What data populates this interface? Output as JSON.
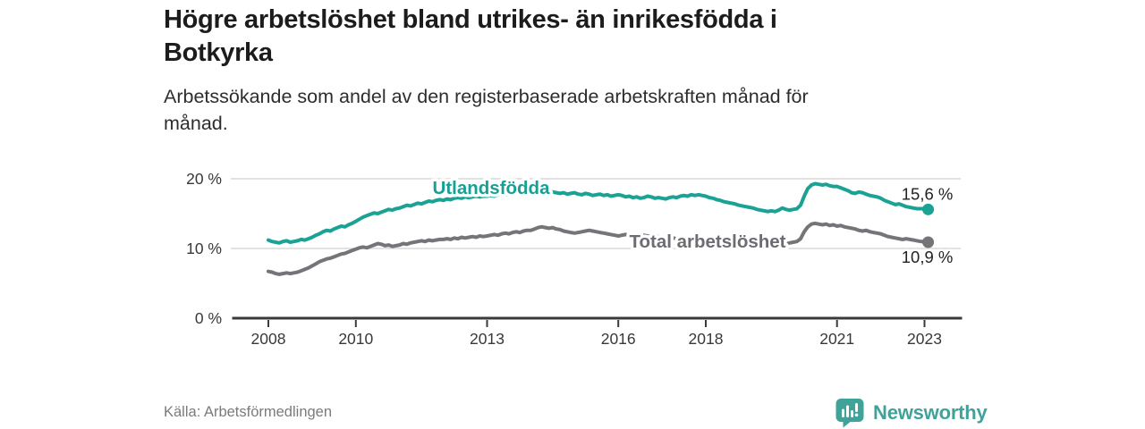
{
  "header": {
    "title_lines": [
      "Högre arbetslöshet bland utrikes- än inrikesfödda i",
      "Botkyrka"
    ],
    "subtitle_lines": [
      "Arbetssökande som andel av den registerbaserade arbetskraften månad för",
      "månad."
    ]
  },
  "footer": {
    "source": "Källa: Arbetsförmedlingen",
    "brand": "Newsworthy",
    "brand_icon": "newsworthy-speech-bubble-bar-chart-icon",
    "brand_color": "#40a39a"
  },
  "colors": {
    "title": "#1c1c1c",
    "subtitle": "#2d2d2d",
    "gridline": "#d9d9d9",
    "axis": "#3a3a3a",
    "background": "#ffffff"
  },
  "chart_data": {
    "type": "line",
    "title": "Högre arbetslöshet bland utrikes- än inrikesfödda i Botkyrka",
    "subtitle": "Arbetssökande som andel av den registerbaserade arbetskraften månad för månad.",
    "x_start": 2008,
    "x_step_months": 1,
    "x_end_label_period": "jan 2023",
    "xlim": [
      2007.2,
      2023.8
    ],
    "ylim": [
      0,
      22
    ],
    "grid": "horizontal",
    "legend_position": "inline-labels",
    "x_axis_ticks": [
      {
        "value": 2008,
        "label": "2008"
      },
      {
        "value": 2010,
        "label": "2010"
      },
      {
        "value": 2013,
        "label": "2013"
      },
      {
        "value": 2016,
        "label": "2016"
      },
      {
        "value": 2018,
        "label": "2018"
      },
      {
        "value": 2021,
        "label": "2021"
      },
      {
        "value": 2023,
        "label": "2023"
      }
    ],
    "y_axis_ticks": [
      {
        "value": 0,
        "label": "0 %"
      },
      {
        "value": 10,
        "label": "10 %"
      },
      {
        "value": 20,
        "label": "20 %"
      }
    ],
    "series": [
      {
        "name": "Utlandsfödda",
        "color": "#1aa294",
        "label_color": "#18a094",
        "end_label": "15,6 %",
        "end_value": 15.6,
        "values": [
          11.2,
          11.0,
          10.9,
          10.8,
          11.0,
          11.1,
          10.9,
          11.0,
          11.1,
          11.3,
          11.2,
          11.4,
          11.6,
          11.9,
          12.1,
          12.4,
          12.6,
          12.5,
          12.8,
          13.0,
          13.2,
          13.1,
          13.4,
          13.6,
          13.9,
          14.2,
          14.5,
          14.7,
          14.9,
          15.1,
          15.0,
          15.2,
          15.4,
          15.6,
          15.5,
          15.7,
          15.8,
          16.0,
          16.2,
          16.1,
          16.3,
          16.5,
          16.4,
          16.6,
          16.8,
          16.7,
          16.9,
          17.0,
          16.9,
          17.1,
          17.0,
          17.2,
          17.3,
          17.2,
          17.4,
          17.3,
          17.4,
          17.5,
          17.4,
          17.5,
          17.5,
          17.6,
          17.5,
          17.7,
          17.8,
          17.7,
          17.9,
          18.0,
          17.9,
          18.1,
          18.0,
          18.2,
          18.1,
          18.3,
          18.2,
          18.4,
          18.3,
          18.2,
          18.1,
          18.0,
          17.9,
          18.0,
          17.8,
          17.9,
          18.0,
          17.8,
          17.7,
          17.9,
          17.8,
          17.6,
          17.7,
          17.8,
          17.6,
          17.7,
          17.5,
          17.6,
          17.7,
          17.6,
          17.4,
          17.5,
          17.3,
          17.4,
          17.2,
          17.3,
          17.5,
          17.4,
          17.2,
          17.3,
          17.2,
          17.1,
          17.3,
          17.4,
          17.3,
          17.5,
          17.6,
          17.5,
          17.7,
          17.6,
          17.7,
          17.6,
          17.5,
          17.3,
          17.2,
          17.0,
          16.9,
          16.7,
          16.6,
          16.5,
          16.4,
          16.2,
          16.1,
          16.0,
          15.9,
          15.8,
          15.6,
          15.5,
          15.4,
          15.3,
          15.4,
          15.3,
          15.5,
          15.8,
          15.6,
          15.5,
          15.6,
          15.7,
          16.2,
          17.5,
          18.6,
          19.1,
          19.3,
          19.2,
          19.1,
          19.2,
          19.0,
          18.9,
          18.9,
          18.7,
          18.5,
          18.3,
          18.0,
          17.9,
          18.1,
          18.0,
          17.8,
          17.6,
          17.5,
          17.4,
          17.2,
          16.9,
          16.7,
          16.5,
          16.3,
          16.4,
          16.2,
          16.0,
          15.9,
          15.8,
          15.7,
          15.7,
          15.7,
          15.6
        ]
      },
      {
        "name": "Total arbetslöshet",
        "color": "#747479",
        "label_color": "#6c6c72",
        "end_label": "10,9 %",
        "end_value": 10.9,
        "values": [
          6.7,
          6.6,
          6.4,
          6.3,
          6.4,
          6.5,
          6.4,
          6.5,
          6.6,
          6.8,
          7.0,
          7.2,
          7.5,
          7.8,
          8.1,
          8.3,
          8.5,
          8.6,
          8.8,
          9.0,
          9.2,
          9.3,
          9.5,
          9.7,
          9.9,
          10.1,
          10.2,
          10.1,
          10.3,
          10.5,
          10.7,
          10.6,
          10.4,
          10.5,
          10.3,
          10.4,
          10.5,
          10.7,
          10.6,
          10.8,
          10.9,
          11.0,
          11.1,
          11.0,
          11.2,
          11.1,
          11.2,
          11.3,
          11.3,
          11.4,
          11.3,
          11.5,
          11.4,
          11.6,
          11.5,
          11.6,
          11.7,
          11.6,
          11.8,
          11.7,
          11.8,
          11.9,
          12.0,
          11.9,
          12.1,
          12.2,
          12.1,
          12.3,
          12.4,
          12.3,
          12.5,
          12.6,
          12.6,
          12.8,
          13.0,
          13.1,
          13.0,
          12.9,
          13.0,
          12.8,
          12.7,
          12.5,
          12.4,
          12.3,
          12.2,
          12.3,
          12.4,
          12.5,
          12.6,
          12.5,
          12.4,
          12.3,
          12.2,
          12.1,
          12.0,
          11.9,
          11.8,
          11.9,
          12.0,
          11.9,
          11.8,
          11.7,
          11.8,
          11.9,
          11.8,
          11.7,
          11.6,
          11.7,
          11.6,
          11.5,
          11.6,
          11.5,
          11.4,
          11.5,
          11.4,
          11.3,
          11.4,
          11.3,
          11.2,
          11.3,
          11.2,
          11.1,
          11.2,
          11.1,
          11.0,
          10.9,
          11.0,
          10.9,
          10.8,
          10.9,
          10.8,
          10.7,
          10.6,
          10.7,
          10.6,
          10.5,
          10.6,
          10.5,
          10.4,
          10.5,
          10.6,
          10.8,
          10.7,
          10.8,
          10.9,
          11.0,
          11.4,
          12.4,
          13.1,
          13.5,
          13.6,
          13.5,
          13.4,
          13.5,
          13.3,
          13.4,
          13.2,
          13.3,
          13.1,
          13.0,
          12.9,
          12.8,
          12.6,
          12.5,
          12.6,
          12.4,
          12.3,
          12.2,
          12.1,
          11.9,
          11.7,
          11.6,
          11.5,
          11.4,
          11.3,
          11.4,
          11.3,
          11.2,
          11.1,
          11.0,
          11.0,
          10.9
        ]
      }
    ]
  }
}
